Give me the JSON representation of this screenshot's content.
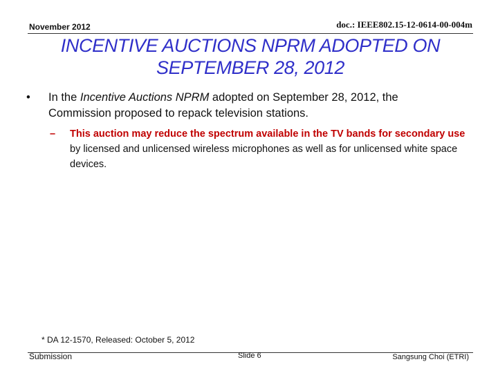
{
  "header": {
    "date": "November 2012",
    "doc_id": "doc.: IEEE802.15-12-0614-00-004m"
  },
  "title": {
    "line1": "INCENTIVE AUCTIONS NPRM ADOPTED ON",
    "line2": "SEPTEMBER 28, 2012"
  },
  "bullets": {
    "level1": {
      "marker": "•",
      "pre": "In the ",
      "italic": "Incentive Auctions NPRM",
      "post": " adopted on September 28, 2012, the Commission proposed to repack television stations."
    },
    "level2": {
      "marker": "–",
      "emphasis": "This auction may reduce the spectrum available in the TV bands for secondary use",
      "rest": " by licensed and unlicensed wireless microphones as well as for unlicensed white space devices."
    }
  },
  "footnote": "* DA 12-1570, Released: October 5, 2012",
  "footer": {
    "submission": "Submission",
    "slide": "Slide 6",
    "author": "Sangsung Choi (ETRI)"
  },
  "colors": {
    "title": "#2f2fc9",
    "emphasis": "#c00000"
  }
}
